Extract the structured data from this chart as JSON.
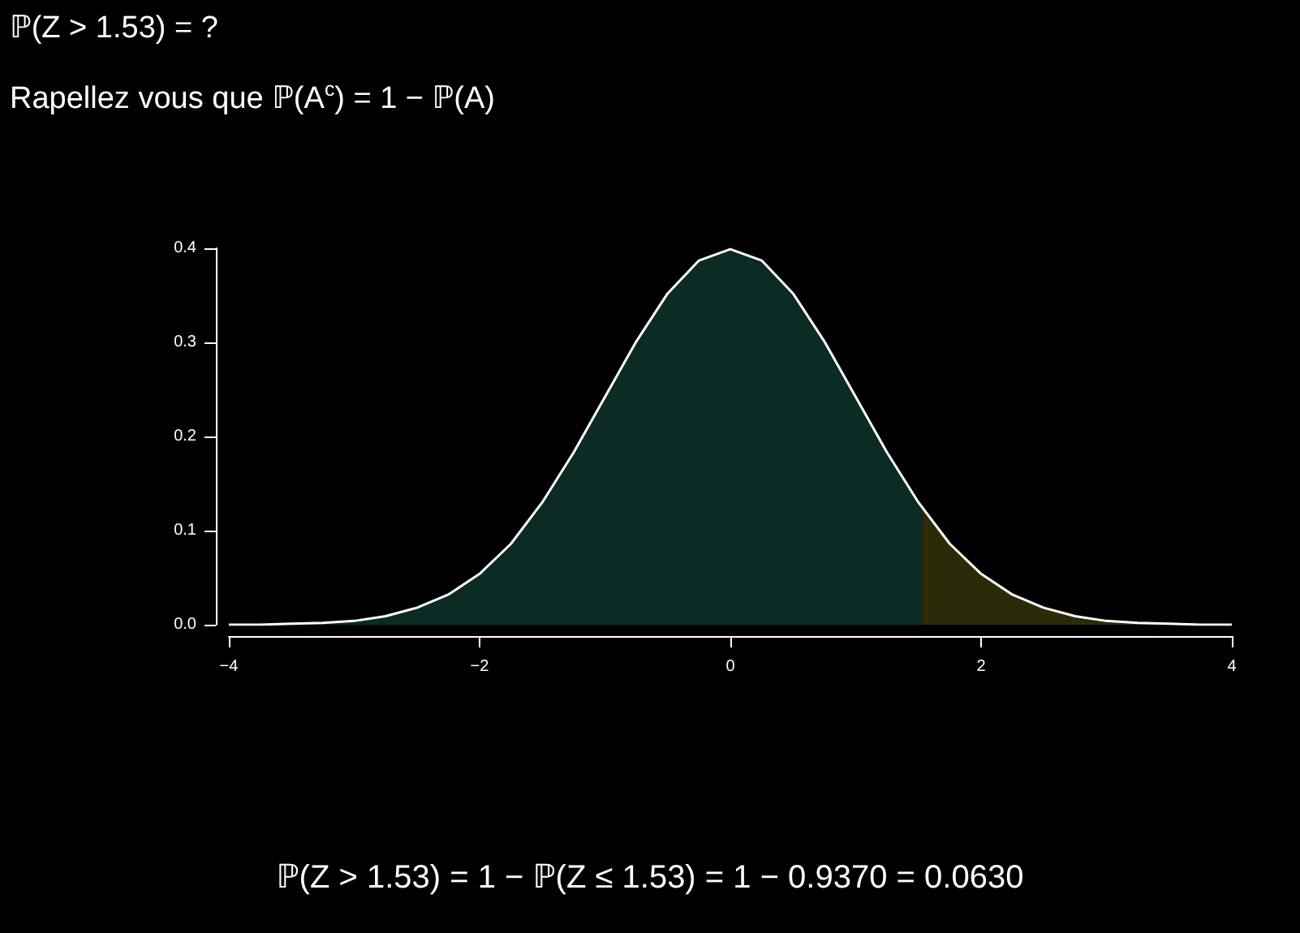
{
  "chart_data": {
    "type": "area",
    "title": "ℙ(Z > 1.53) = ?",
    "subtitle": "Rapellez vous que ℙ(A$^{c}$) = 1 − ℙ(A)",
    "annotations": [
      "ℙ(Z > 1.53) = 1 − ℙ(Z ≤ 1.53) = 1 − 0.9370 = 0.0630"
    ],
    "series": [
      {
        "color": "#0b2b24",
        "x": [
          -4,
          -3.75,
          -3.5,
          -3.25,
          -3,
          -2.75,
          -2.5,
          -2.25,
          -2,
          -1.75,
          -1.5,
          -1.25,
          -1,
          -0.75,
          -0.5,
          -0.25,
          0,
          0.25,
          0.5,
          0.75,
          1,
          1.25,
          1.5,
          1.53
        ],
        "values": [
          0.0,
          0.0,
          0.001,
          0.002,
          0.004,
          0.009,
          0.018,
          0.032,
          0.054,
          0.086,
          0.13,
          0.183,
          0.242,
          0.301,
          0.352,
          0.387,
          0.399,
          0.387,
          0.352,
          0.301,
          0.242,
          0.183,
          0.13,
          0.124
        ]
      },
      {
        "color": "#2b2b08",
        "x": [
          1.53,
          1.75,
          2,
          2.25,
          2.5,
          2.75,
          3,
          3.25,
          3.5,
          3.75,
          4
        ],
        "values": [
          0.124,
          0.086,
          0.054,
          0.032,
          0.018,
          0.009,
          0.004,
          0.002,
          0.001,
          0.0,
          0.0
        ]
      },
      {
        "type": "line",
        "color": "#ffffff",
        "x": [
          -4,
          -3.75,
          -3.5,
          -3.25,
          -3,
          -2.75,
          -2.5,
          -2.25,
          -2,
          -1.75,
          -1.5,
          -1.25,
          -1,
          -0.75,
          -0.5,
          -0.25,
          0,
          0.25,
          0.5,
          0.75,
          1,
          1.25,
          1.5,
          1.75,
          2,
          2.25,
          2.5,
          2.75,
          3,
          3.25,
          3.5,
          3.75,
          4
        ],
        "values": [
          0.0,
          0.0,
          0.001,
          0.002,
          0.004,
          0.009,
          0.018,
          0.032,
          0.054,
          0.086,
          0.13,
          0.183,
          0.242,
          0.301,
          0.352,
          0.387,
          0.399,
          0.387,
          0.352,
          0.301,
          0.242,
          0.183,
          0.13,
          0.086,
          0.054,
          0.032,
          0.018,
          0.009,
          0.004,
          0.002,
          0.001,
          0.0,
          0.0
        ]
      }
    ],
    "xlim": [
      -4,
      4
    ],
    "xticks": [
      {
        "value": -4,
        "label": "−4"
      },
      {
        "value": -2,
        "label": "−2"
      },
      0,
      2,
      4
    ],
    "ylim": [
      0,
      0.4
    ],
    "yticks": [
      {
        "value": 0,
        "label": "0.0"
      },
      0.1,
      0.2,
      0.3,
      0.4
    ],
    "grid": false,
    "marker": "none",
    "line_style": "solid"
  }
}
